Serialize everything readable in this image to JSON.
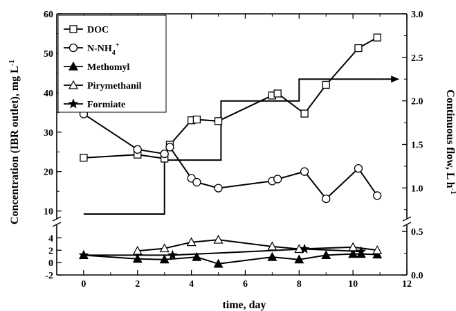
{
  "chart_data": {
    "type": "line",
    "xlabel": "time, day",
    "ylabel": "Concentration (IBR outlet), mg L",
    "ylabel_sup": "-1",
    "y2label": "Continuous flow, L h",
    "y2label_sup": "-1",
    "xlim": [
      -1,
      12
    ],
    "x_ticks": [
      0,
      2,
      4,
      6,
      8,
      10,
      12
    ],
    "upper_panel": {
      "ylim": [
        8,
        60
      ],
      "ticks": [
        10,
        20,
        30,
        40,
        50,
        60
      ]
    },
    "lower_panel": {
      "ylim": [
        -2,
        5.5
      ],
      "ticks": [
        -2,
        0,
        2,
        4
      ]
    },
    "y2lim": [
      0.0,
      3.0
    ],
    "y2_ticks": [
      "0.0",
      "0.5",
      "1.0",
      "1.5",
      "2.0",
      "2.5",
      "3.0"
    ],
    "axis_break": true,
    "legend_position": "top-left",
    "legend": [
      "DOC",
      "N-NH",
      "Methomyl",
      "Pirymethanil",
      "Formiate"
    ],
    "series": [
      {
        "name": "DOC",
        "marker": "open-square",
        "panel": "upper",
        "x": [
          0,
          2,
          3,
          3.2,
          4,
          4.2,
          5,
          7,
          7.2,
          8.2,
          9,
          10.2,
          10.9
        ],
        "y": [
          23.5,
          24.3,
          23.3,
          26.8,
          33,
          33.2,
          32.8,
          39.3,
          39.8,
          34.7,
          42,
          51.3,
          54
        ]
      },
      {
        "name": "N-NH",
        "sub": "4",
        "sup": "+",
        "marker": "open-circle",
        "panel": "upper",
        "x": [
          0,
          2,
          3,
          3.2,
          4,
          4.2,
          5,
          7,
          7.2,
          8.2,
          9,
          10.2,
          10.9
        ],
        "y": [
          34.6,
          25.6,
          24.5,
          26.2,
          18.3,
          17.3,
          15.8,
          17.6,
          18.1,
          20,
          13.1,
          20.8,
          13.9
        ]
      },
      {
        "name": "Methomyl",
        "marker": "filled-triangle",
        "panel": "lower",
        "x": [
          0,
          2,
          3,
          4.2,
          5,
          7,
          8,
          9,
          10,
          10.3,
          10.9
        ],
        "y": [
          1.2,
          0.6,
          0.5,
          0.9,
          -0.2,
          0.9,
          0.5,
          1.2,
          1.4,
          1.4,
          1.3
        ]
      },
      {
        "name": "Pirymethanil",
        "marker": "open-triangle",
        "panel": "lower",
        "x": [
          2,
          3,
          4,
          5,
          7,
          8,
          10,
          10.9
        ],
        "y": [
          1.9,
          2.3,
          3.3,
          3.7,
          2.6,
          2.2,
          2.5,
          2.0
        ]
      },
      {
        "name": "Formiate",
        "marker": "filled-star",
        "panel": "lower",
        "x": [
          0,
          3.3,
          8.2,
          10.3
        ],
        "y": [
          1.2,
          1.2,
          2.2,
          1.8
        ]
      },
      {
        "name": "Continuous flow",
        "axis": "right",
        "marker": "none",
        "step": true,
        "x": [
          0,
          3,
          3,
          5.1,
          5.1,
          8,
          8,
          10.9
        ],
        "y": [
          0.7,
          0.7,
          1.32,
          1.32,
          2.0,
          2.0,
          2.25,
          2.25
        ]
      }
    ]
  }
}
